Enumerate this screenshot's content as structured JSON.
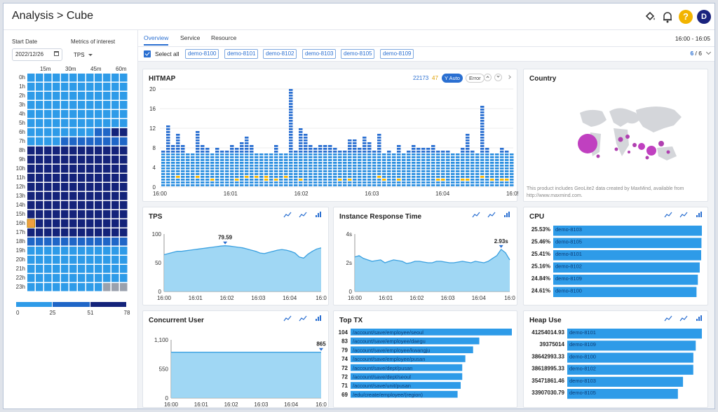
{
  "header": {
    "title": "Analysis > Cube",
    "avatar": "D",
    "help": "?"
  },
  "left": {
    "start_date_label": "Start Date",
    "start_date": "2022/12/26",
    "metrics_label": "Metrics of interest",
    "metric": "TPS",
    "heatmap": {
      "columns": [
        "15m",
        "30m",
        "45m",
        "60m"
      ],
      "rows": [
        "0h",
        "1h",
        "2h",
        "3h",
        "4h",
        "5h",
        "6h",
        "7h",
        "8h",
        "9h",
        "10h",
        "11h",
        "12h",
        "13h",
        "14h",
        "15h",
        "16h",
        "17h",
        "18h",
        "19h",
        "20h",
        "21h",
        "22h",
        "23h"
      ],
      "levels": [
        [
          0,
          0,
          0,
          0,
          0,
          0,
          0,
          0,
          0,
          0,
          0,
          0
        ],
        [
          0,
          0,
          0,
          0,
          0,
          0,
          0,
          0,
          0,
          0,
          0,
          0
        ],
        [
          0,
          0,
          0,
          0,
          0,
          0,
          0,
          0,
          0,
          0,
          0,
          0
        ],
        [
          0,
          0,
          0,
          0,
          0,
          0,
          0,
          0,
          0,
          0,
          0,
          0
        ],
        [
          0,
          0,
          0,
          0,
          0,
          0,
          0,
          0,
          0,
          0,
          0,
          0
        ],
        [
          0,
          0,
          0,
          0,
          0,
          0,
          0,
          0,
          0,
          0,
          0,
          0
        ],
        [
          0,
          0,
          0,
          0,
          0,
          0,
          0,
          0,
          1,
          1,
          2,
          2
        ],
        [
          0,
          0,
          0,
          0,
          1,
          1,
          1,
          1,
          1,
          1,
          1,
          1
        ],
        [
          2,
          2,
          2,
          2,
          2,
          2,
          2,
          2,
          2,
          2,
          2,
          2
        ],
        [
          2,
          2,
          2,
          2,
          2,
          2,
          2,
          2,
          2,
          2,
          2,
          2
        ],
        [
          2,
          2,
          2,
          2,
          2,
          2,
          2,
          2,
          2,
          2,
          2,
          2
        ],
        [
          2,
          2,
          2,
          2,
          2,
          2,
          2,
          2,
          2,
          2,
          2,
          2
        ],
        [
          2,
          2,
          2,
          2,
          2,
          2,
          2,
          2,
          2,
          2,
          2,
          2
        ],
        [
          2,
          2,
          2,
          2,
          2,
          2,
          2,
          2,
          2,
          2,
          2,
          2
        ],
        [
          2,
          2,
          2,
          2,
          2,
          2,
          2,
          2,
          2,
          2,
          2,
          2
        ],
        [
          2,
          2,
          2,
          2,
          2,
          2,
          2,
          2,
          2,
          2,
          2,
          2
        ],
        [
          3,
          2,
          2,
          2,
          2,
          2,
          2,
          2,
          2,
          2,
          2,
          2
        ],
        [
          2,
          2,
          2,
          2,
          2,
          2,
          2,
          2,
          2,
          2,
          2,
          2
        ],
        [
          1,
          1,
          1,
          1,
          1,
          1,
          1,
          1,
          1,
          1,
          1,
          1
        ],
        [
          0,
          0,
          0,
          0,
          0,
          0,
          0,
          0,
          0,
          0,
          0,
          0
        ],
        [
          0,
          0,
          0,
          0,
          0,
          0,
          0,
          0,
          0,
          0,
          0,
          0
        ],
        [
          0,
          0,
          0,
          0,
          0,
          0,
          0,
          0,
          0,
          0,
          0,
          0
        ],
        [
          0,
          0,
          0,
          0,
          0,
          0,
          0,
          0,
          0,
          0,
          0,
          0
        ],
        [
          0,
          0,
          0,
          0,
          0,
          0,
          0,
          0,
          0,
          4,
          4,
          4
        ]
      ],
      "colors": [
        "#2e9be8",
        "#1f66c7",
        "#14237a",
        "#f0a040",
        "#9aa1ad"
      ],
      "scale_ticks": [
        "0",
        "25",
        "51",
        "78"
      ]
    }
  },
  "tabs": [
    "Overview",
    "Service",
    "Resource"
  ],
  "time_range": "16:00 - 16:05",
  "select_all": "Select all",
  "instances": [
    "demo-8100",
    "demo-8101",
    "demo-8102",
    "demo-8103",
    "demo-8105",
    "demo-8109"
  ],
  "instance_count": "6",
  "instance_total": "/ 6",
  "hitmap": {
    "title": "HITMAP",
    "count_blue": "22173",
    "count_yellow": "47",
    "y_auto": "Y Auto",
    "error": "Error",
    "yticks": [
      "20",
      "16",
      "12",
      "8",
      "4",
      "0"
    ],
    "xticks": [
      "16:00",
      "16:01",
      "16:02",
      "16:03",
      "16:04",
      "16:05"
    ]
  },
  "country": {
    "title": "Country",
    "note": "This product includes GeoLite2 data created by MaxMind, available from http://www.maxmind.com."
  },
  "colors": {
    "accent": "#2a6fd1",
    "bar": "#2e9be8",
    "area": "#8fd0f2",
    "line": "#3aa0e0",
    "gold": "#f2b400",
    "navy": "#1a237e"
  },
  "tps": {
    "title": "TPS",
    "peak": "79.59",
    "yticks": [
      "100",
      "50",
      "0"
    ],
    "xticks": [
      "16:00",
      "16:01",
      "16:02",
      "16:03",
      "16:04",
      "16:0"
    ]
  },
  "resp": {
    "title": "Instance Response Time",
    "peak": "2.93s",
    "yticks": [
      "4s",
      "2s",
      "0"
    ],
    "xticks": [
      "16:00",
      "16:01",
      "16:02",
      "16:03",
      "16:04",
      "16:0"
    ]
  },
  "cpu": {
    "title": "CPU",
    "rows": [
      {
        "value": "25.53%",
        "name": "demo-8103"
      },
      {
        "value": "25.46%",
        "name": "demo-8105"
      },
      {
        "value": "25.41%",
        "name": "demo-8101"
      },
      {
        "value": "25.16%",
        "name": "demo-8102"
      },
      {
        "value": "24.84%",
        "name": "demo-8109"
      },
      {
        "value": "24.61%",
        "name": "demo-8100"
      }
    ]
  },
  "concurrent": {
    "title": "Concurrent User",
    "peak": "865",
    "yticks": [
      "1,100",
      "550",
      "0"
    ],
    "xticks": [
      "16:00",
      "16:01",
      "16:02",
      "16:03",
      "16:04",
      "16:0"
    ]
  },
  "toptx": {
    "title": "Top TX",
    "rows": [
      {
        "value": "104",
        "name": "/account/save/employee/seoul"
      },
      {
        "value": "83",
        "name": "/account/save/employee/daegu"
      },
      {
        "value": "79",
        "name": "/account/save/employee/kwangju"
      },
      {
        "value": "74",
        "name": "/account/save/employee/pusan"
      },
      {
        "value": "72",
        "name": "/account/save/dept/pusan"
      },
      {
        "value": "72",
        "name": "/account/save/dept/seoul"
      },
      {
        "value": "71",
        "name": "/account/save/unit/pusan"
      },
      {
        "value": "69",
        "name": "/edu/create/employee/(region)"
      }
    ]
  },
  "heap": {
    "title": "Heap Use",
    "rows": [
      {
        "value": "41254014.93",
        "name": "demo-8101"
      },
      {
        "value": "39375014",
        "name": "demo-8109"
      },
      {
        "value": "38642993.33",
        "name": "demo-8100"
      },
      {
        "value": "38618995.33",
        "name": "demo-8102"
      },
      {
        "value": "35471861.46",
        "name": "demo-8103"
      },
      {
        "value": "33907030.79",
        "name": "demo-8105"
      }
    ]
  }
}
